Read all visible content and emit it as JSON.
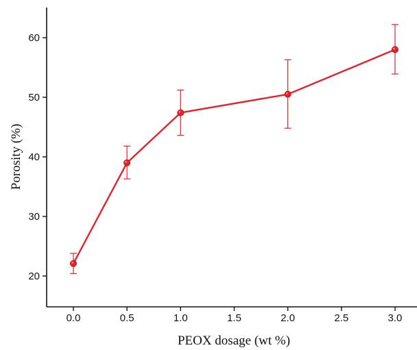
{
  "chart_data": {
    "type": "line",
    "title": "",
    "xlabel": "PEOX dosage (wt %)",
    "ylabel": "Porosity (%)",
    "xlim": [
      -0.35,
      3.15
    ],
    "ylim": [
      15,
      65
    ],
    "x_ticks": [
      "0.0",
      "0.5",
      "1.0",
      "1.5",
      "2.0",
      "2.5",
      "3.0"
    ],
    "y_ticks": [
      "20",
      "30",
      "40",
      "50",
      "60"
    ],
    "x_tick_values": [
      0.0,
      0.5,
      1.0,
      1.5,
      2.0,
      2.5,
      3.0
    ],
    "y_tick_values": [
      20,
      30,
      40,
      50,
      60
    ],
    "grid": false,
    "legend": "none",
    "series": [
      {
        "color": "#e8202a",
        "marker": "circle",
        "x": [
          0.0,
          0.5,
          1.0,
          2.0,
          3.0
        ],
        "y": [
          22.1,
          39.0,
          47.4,
          50.5,
          58.0
        ],
        "y_err_low": [
          20.4,
          36.3,
          43.6,
          44.8,
          53.9
        ],
        "y_err_high": [
          23.8,
          41.8,
          51.2,
          56.3,
          62.2
        ]
      }
    ]
  }
}
